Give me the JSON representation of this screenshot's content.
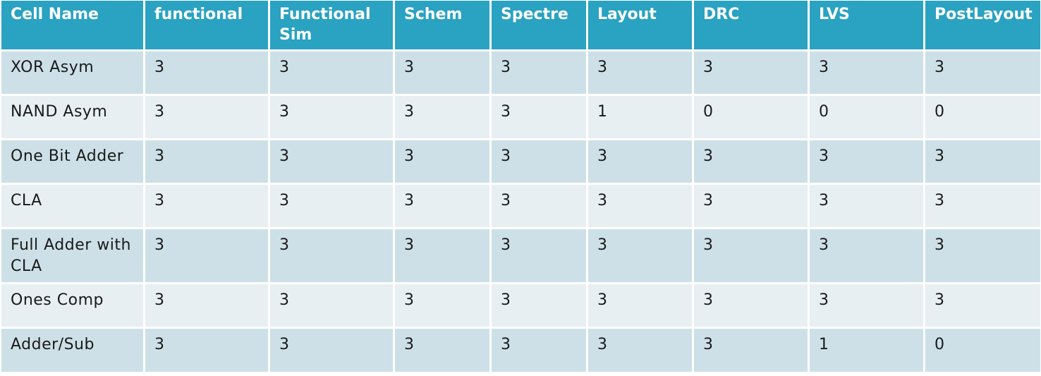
{
  "table": {
    "headers": [
      "Cell Name",
      "functional",
      "Functional Sim",
      "Schem",
      "Spectre",
      "Layout",
      "DRC",
      "LVS",
      "PostLayout"
    ],
    "rows": [
      [
        "XOR Asym",
        "3",
        "3",
        "3",
        "3",
        "3",
        "3",
        "3",
        "3"
      ],
      [
        "NAND Asym",
        "3",
        "3",
        "3",
        "3",
        "1",
        "0",
        "0",
        "0"
      ],
      [
        "One Bit Adder",
        "3",
        "3",
        "3",
        "3",
        "3",
        "3",
        "3",
        "3"
      ],
      [
        "CLA",
        "3",
        "3",
        "3",
        "3",
        "3",
        "3",
        "3",
        "3"
      ],
      [
        "Full Adder with CLA",
        "3",
        "3",
        "3",
        "3",
        "3",
        "3",
        "3",
        "3"
      ],
      [
        "Ones Comp",
        "3",
        "3",
        "3",
        "3",
        "3",
        "3",
        "3",
        "3"
      ],
      [
        "Adder/Sub",
        "3",
        "3",
        "3",
        "3",
        "3",
        "3",
        "1",
        "0"
      ]
    ]
  },
  "colors": {
    "header_bg": "#2aa2c2",
    "row_dark": "#cde0e8",
    "row_light": "#e8eff3"
  }
}
